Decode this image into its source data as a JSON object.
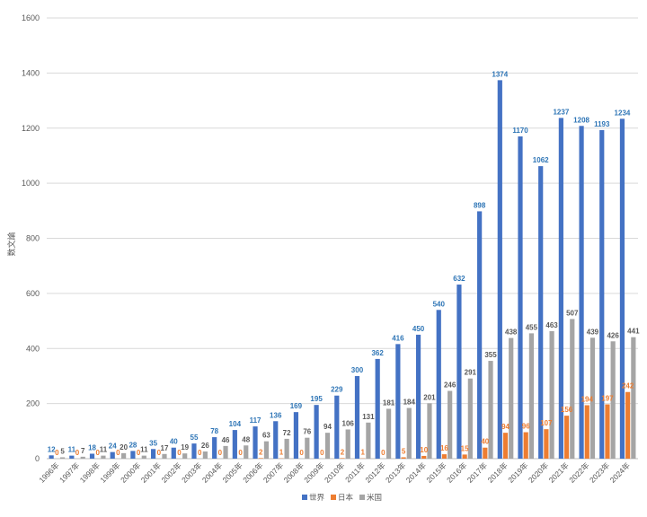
{
  "chart_data": {
    "type": "bar",
    "ylabel": "数文論",
    "ylim": [
      0,
      1600
    ],
    "yticks": [
      0,
      200,
      400,
      600,
      800,
      1000,
      1200,
      1400,
      1600
    ],
    "grid": true,
    "legend_position": "bottom",
    "categories": [
      "1996年",
      "1997年",
      "1998年",
      "1999年",
      "2000年",
      "2001年",
      "2002年",
      "2003年",
      "2004年",
      "2005年",
      "2006年",
      "2007年",
      "2008年",
      "2009年",
      "2010年",
      "2011年",
      "2012年",
      "2013年",
      "2014年",
      "2015年",
      "2016年",
      "2017年",
      "2018年",
      "2019年",
      "2020年",
      "2021年",
      "2022年",
      "2023年",
      "2024年"
    ],
    "series": [
      {
        "name": "世界",
        "color": "#4472C4",
        "label_color": "#2E75B6",
        "values": [
          12,
          11,
          18,
          24,
          28,
          35,
          40,
          55,
          78,
          104,
          117,
          136,
          169,
          195,
          229,
          300,
          362,
          416,
          450,
          540,
          632,
          898,
          1374,
          1170,
          1062,
          1237,
          1208,
          1193,
          1234
        ]
      },
      {
        "name": "日本",
        "color": "#ED7D31",
        "label_color": "#ED7D31",
        "values": [
          0,
          0,
          0,
          0,
          0,
          0,
          0,
          0,
          0,
          0,
          2,
          1,
          0,
          0,
          2,
          1,
          0,
          5,
          10,
          16,
          15,
          40,
          94,
          96,
          107,
          156,
          194,
          197,
          242
        ]
      },
      {
        "name": "米国",
        "color": "#A5A5A5",
        "label_color": "#595959",
        "values": [
          5,
          7,
          11,
          20,
          11,
          17,
          19,
          26,
          46,
          48,
          63,
          72,
          76,
          94,
          106,
          131,
          181,
          184,
          201,
          246,
          291,
          355,
          438,
          455,
          463,
          507,
          439,
          426,
          441
        ]
      }
    ]
  }
}
